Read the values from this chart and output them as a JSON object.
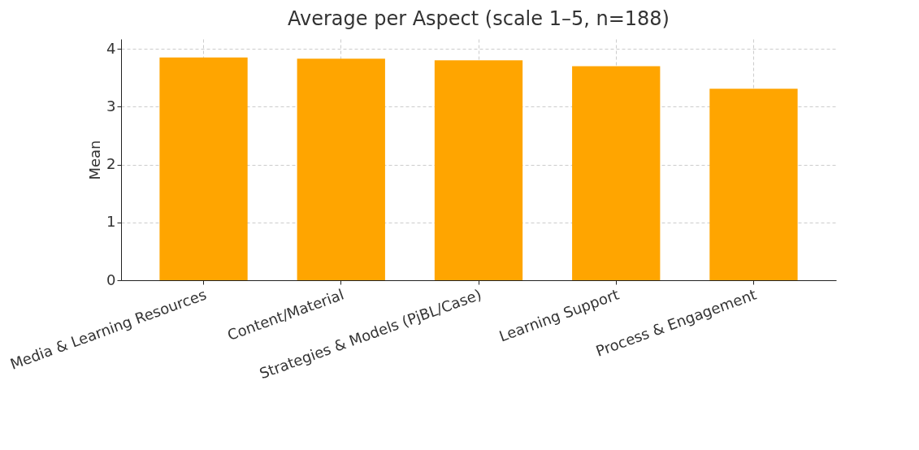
{
  "chart_data": {
    "type": "bar",
    "title": "Average per Aspect (scale 1–5, n=188)",
    "ylabel": "Mean",
    "categories": [
      "Media & Learning Resources",
      "Content/Material",
      "Strategies & Models (PjBL/Case)",
      "Learning Support",
      "Process & Engagement"
    ],
    "values": [
      3.85,
      3.83,
      3.8,
      3.7,
      3.31
    ],
    "color": "#ffa500",
    "ylim": [
      0,
      4.17
    ],
    "yticks": [
      0,
      1,
      2,
      3,
      4
    ],
    "grid": true
  }
}
